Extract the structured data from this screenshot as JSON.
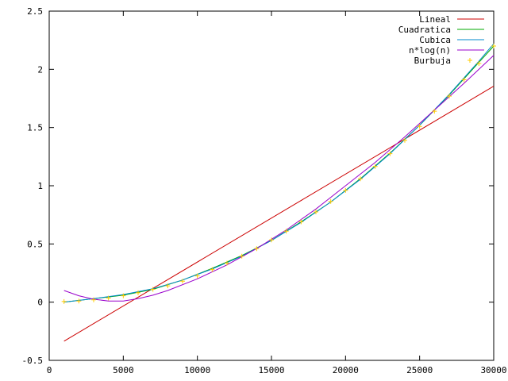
{
  "chart_data": {
    "type": "line",
    "title": "",
    "xlabel": "",
    "ylabel": "",
    "xlim": [
      0,
      30000
    ],
    "ylim": [
      -0.5,
      2.5
    ],
    "x_ticks": [
      0,
      5000,
      10000,
      15000,
      20000,
      25000,
      30000
    ],
    "x_tick_labels": [
      "0",
      "5000",
      "10000",
      "15000",
      "20000",
      "25000",
      "30000"
    ],
    "y_ticks": [
      -0.5,
      0,
      0.5,
      1,
      1.5,
      2,
      2.5
    ],
    "y_tick_labels": [
      "-0.5",
      "0",
      "0.5",
      "1",
      "1.5",
      "2",
      "2.5"
    ],
    "grid": false,
    "legend_position": "top-right",
    "series": [
      {
        "name": "Lineal",
        "color": "#cc0000",
        "style": "line",
        "x": [
          1000,
          30000
        ],
        "y": [
          -0.335,
          1.855
        ]
      },
      {
        "name": "Cuadratica",
        "color": "#00aa00",
        "style": "line",
        "x": [
          1000,
          3000,
          5000,
          7000,
          9000,
          11000,
          13000,
          15000,
          17000,
          19000,
          21000,
          23000,
          25000,
          27000,
          29000,
          30000
        ],
        "y": [
          0.0,
          0.03,
          0.06,
          0.11,
          0.19,
          0.29,
          0.4,
          0.53,
          0.69,
          0.86,
          1.06,
          1.28,
          1.52,
          1.78,
          2.06,
          2.2
        ]
      },
      {
        "name": "Cubica",
        "color": "#0088cc",
        "style": "line",
        "x": [
          1000,
          3000,
          5000,
          7000,
          9000,
          11000,
          13000,
          15000,
          17000,
          19000,
          21000,
          23000,
          25000,
          27000,
          29000,
          30000
        ],
        "y": [
          0.0,
          0.03,
          0.065,
          0.115,
          0.19,
          0.285,
          0.395,
          0.53,
          0.685,
          0.86,
          1.055,
          1.275,
          1.52,
          1.785,
          2.07,
          2.22
        ]
      },
      {
        "name": "n*log(n)",
        "color": "#9900cc",
        "style": "line",
        "x": [
          1000,
          2000,
          3000,
          4000,
          5000,
          6000,
          7000,
          8000,
          10000,
          12000,
          14000,
          16000,
          18000,
          20000,
          22000,
          24000,
          26000,
          28000,
          30000
        ],
        "y": [
          0.1,
          0.055,
          0.025,
          0.01,
          0.01,
          0.03,
          0.06,
          0.1,
          0.2,
          0.32,
          0.46,
          0.62,
          0.8,
          1.0,
          1.2,
          1.42,
          1.65,
          1.88,
          2.12
        ]
      },
      {
        "name": "Burbuja",
        "color": "#ffcc00",
        "style": "points",
        "x": [
          1000,
          2000,
          3000,
          4000,
          5000,
          6000,
          7000,
          8000,
          9000,
          10000,
          11000,
          12000,
          13000,
          14000,
          15000,
          16000,
          17000,
          18000,
          19000,
          20000,
          21000,
          22000,
          23000,
          24000,
          25000,
          26000,
          27000,
          28000,
          29000,
          30000
        ],
        "y": [
          0.005,
          0.01,
          0.02,
          0.035,
          0.055,
          0.08,
          0.11,
          0.14,
          0.18,
          0.225,
          0.28,
          0.335,
          0.395,
          0.46,
          0.535,
          0.61,
          0.69,
          0.775,
          0.865,
          0.96,
          1.06,
          1.165,
          1.275,
          1.39,
          1.51,
          1.64,
          1.77,
          1.91,
          2.05,
          2.2
        ]
      }
    ]
  }
}
